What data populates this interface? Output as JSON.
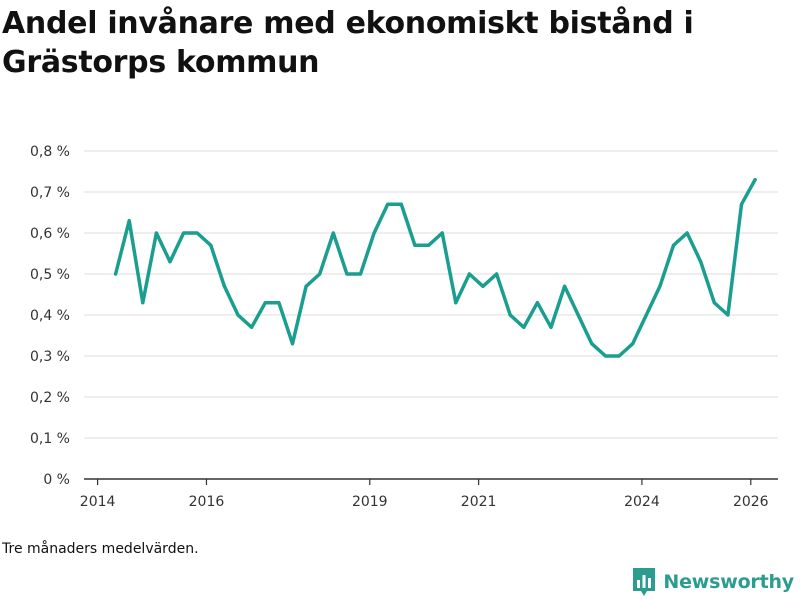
{
  "title": "Andel invånare med ekonomiskt bistånd i Grästorps kommun",
  "footnote": "Tre månaders medelvärden.",
  "brand": {
    "name": "Newsworthy",
    "icon": "newsworthy-logo-icon",
    "color": "#2a9d8f"
  },
  "chart_data": {
    "type": "line",
    "title": "Andel invånare med ekonomiskt bistånd i Grästorps kommun",
    "xlabel": "",
    "ylabel": "",
    "ylim": [
      0,
      0.8
    ],
    "xlim": [
      2013.75,
      2026.5
    ],
    "y_ticks": [
      0,
      0.1,
      0.2,
      0.3,
      0.4,
      0.5,
      0.6,
      0.7,
      0.8
    ],
    "y_tick_labels": [
      "0 %",
      "0,1 %",
      "0,2 %",
      "0,3 %",
      "0,4 %",
      "0,5 %",
      "0,6 %",
      "0,7 %",
      "0,8 %"
    ],
    "x_ticks": [
      2014,
      2016,
      2019,
      2021,
      2024,
      2026
    ],
    "x_tick_labels": [
      "2014",
      "2016",
      "2019",
      "2021",
      "2024",
      "2026"
    ],
    "grid": true,
    "line_color": "#1a9e8f",
    "series": [
      {
        "name": "Andel invånare med ekonomiskt bistånd",
        "x": [
          2014.33,
          2014.58,
          2014.83,
          2015.08,
          2015.33,
          2015.58,
          2015.83,
          2016.08,
          2016.33,
          2016.58,
          2016.83,
          2017.08,
          2017.33,
          2017.58,
          2017.83,
          2018.08,
          2018.33,
          2018.58,
          2018.83,
          2019.08,
          2019.33,
          2019.58,
          2019.83,
          2020.08,
          2020.33,
          2020.58,
          2020.83,
          2021.08,
          2021.33,
          2021.58,
          2021.83,
          2022.08,
          2022.33,
          2022.58,
          2022.83,
          2023.08,
          2023.33,
          2023.58,
          2023.83,
          2024.08,
          2024.33,
          2024.58,
          2024.83,
          2025.08,
          2025.33,
          2025.58,
          2025.83,
          2026.08
        ],
        "values": [
          0.5,
          0.63,
          0.43,
          0.6,
          0.53,
          0.6,
          0.6,
          0.57,
          0.47,
          0.4,
          0.37,
          0.43,
          0.43,
          0.33,
          0.47,
          0.5,
          0.6,
          0.5,
          0.5,
          0.6,
          0.67,
          0.67,
          0.57,
          0.57,
          0.6,
          0.43,
          0.5,
          0.47,
          0.5,
          0.4,
          0.37,
          0.43,
          0.37,
          0.47,
          0.4,
          0.33,
          0.3,
          0.3,
          0.33,
          0.4,
          0.47,
          0.57,
          0.6,
          0.53,
          0.43,
          0.4,
          0.67,
          0.73
        ]
      }
    ]
  }
}
